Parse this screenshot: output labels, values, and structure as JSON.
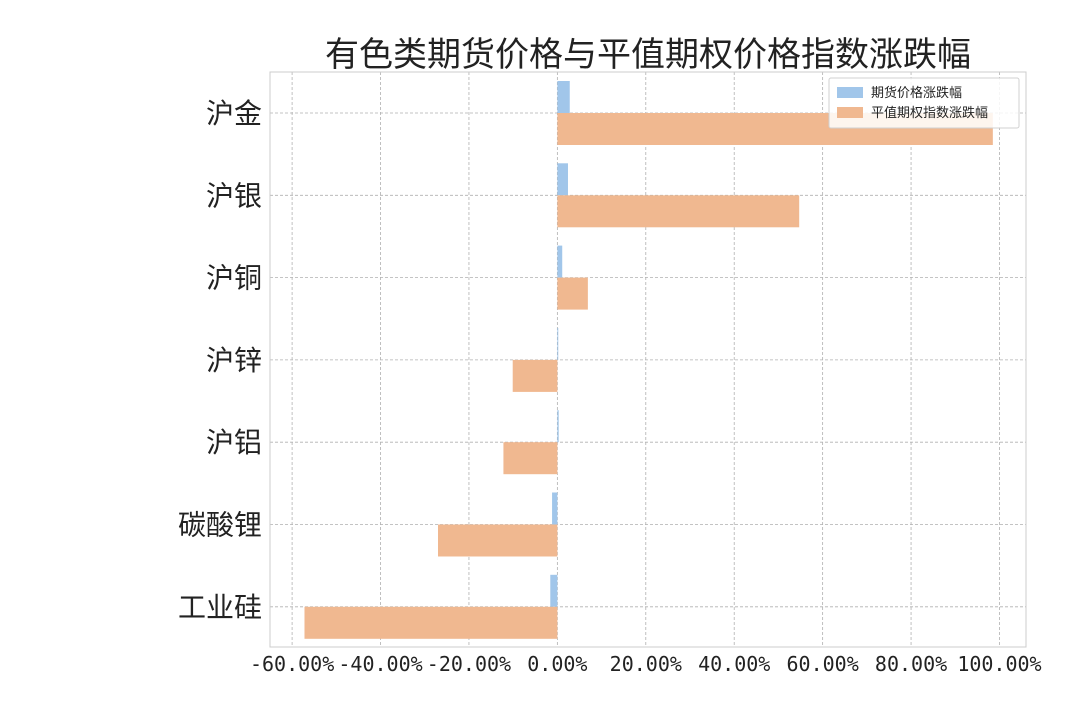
{
  "chart_data": {
    "type": "bar",
    "orientation": "horizontal",
    "title": "有色类期货价格与平值期权价格指数涨跌幅",
    "categories": [
      "沪金",
      "沪银",
      "沪铜",
      "沪锌",
      "沪铝",
      "碳酸锂",
      "工业硅"
    ],
    "series": [
      {
        "name": "期货价格涨跌幅",
        "color": "#a1c6ea",
        "values": [
          2.8,
          2.4,
          1.1,
          0.2,
          0.3,
          -1.2,
          -1.6
        ]
      },
      {
        "name": "平值期权指数涨跌幅",
        "color": "#f0b890",
        "values": [
          98.5,
          54.7,
          6.9,
          -10.1,
          -12.2,
          -27.0,
          -57.2
        ]
      }
    ],
    "xlim": [
      -65,
      106
    ],
    "xticks": [
      -60,
      -40,
      -20,
      0,
      20,
      40,
      60,
      80,
      100
    ],
    "xtick_labels": [
      "-60.00%",
      "-40.00%",
      "-20.00%",
      "0.00%",
      "20.00%",
      "40.00%",
      "60.00%",
      "80.00%",
      "100.00%"
    ],
    "grid": true,
    "legend_position": "top-right"
  }
}
